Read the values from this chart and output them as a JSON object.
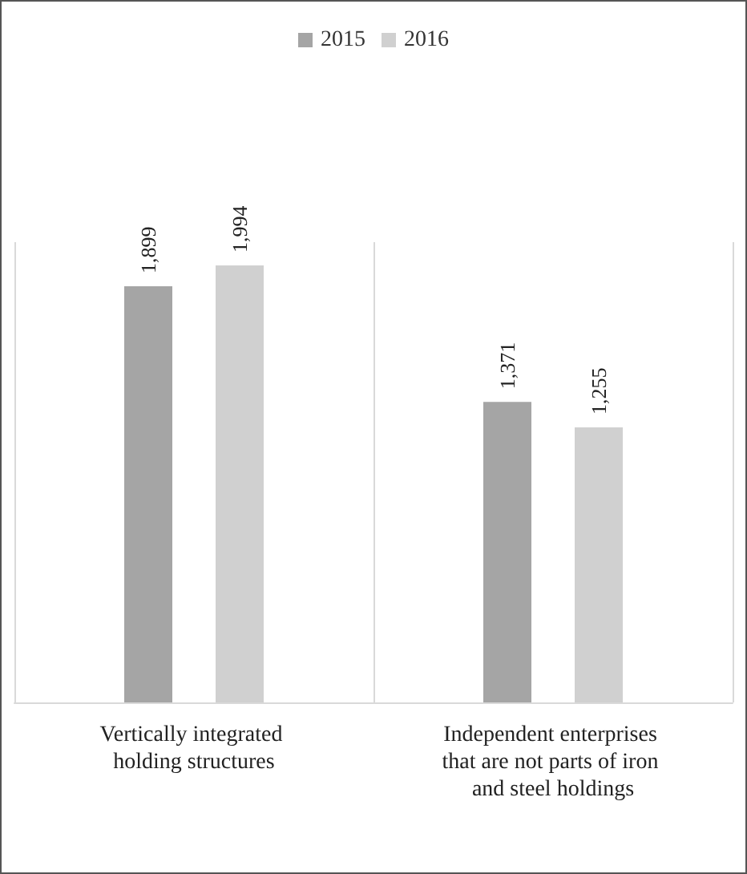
{
  "chart_data": {
    "type": "bar",
    "categories": [
      "Vertically integrated holding structures",
      "Independent enterprises that are not parts of iron and steel holdings"
    ],
    "series": [
      {
        "name": "2015",
        "color": "#a5a5a5",
        "values": [
          1899,
          1371
        ],
        "value_labels": [
          "1,899",
          "1,371"
        ]
      },
      {
        "name": "2016",
        "color": "#d0d0d0",
        "values": [
          1994,
          1255
        ],
        "value_labels": [
          "1,994",
          "1,255"
        ]
      }
    ],
    "legend": "top",
    "grid": "x"
  }
}
